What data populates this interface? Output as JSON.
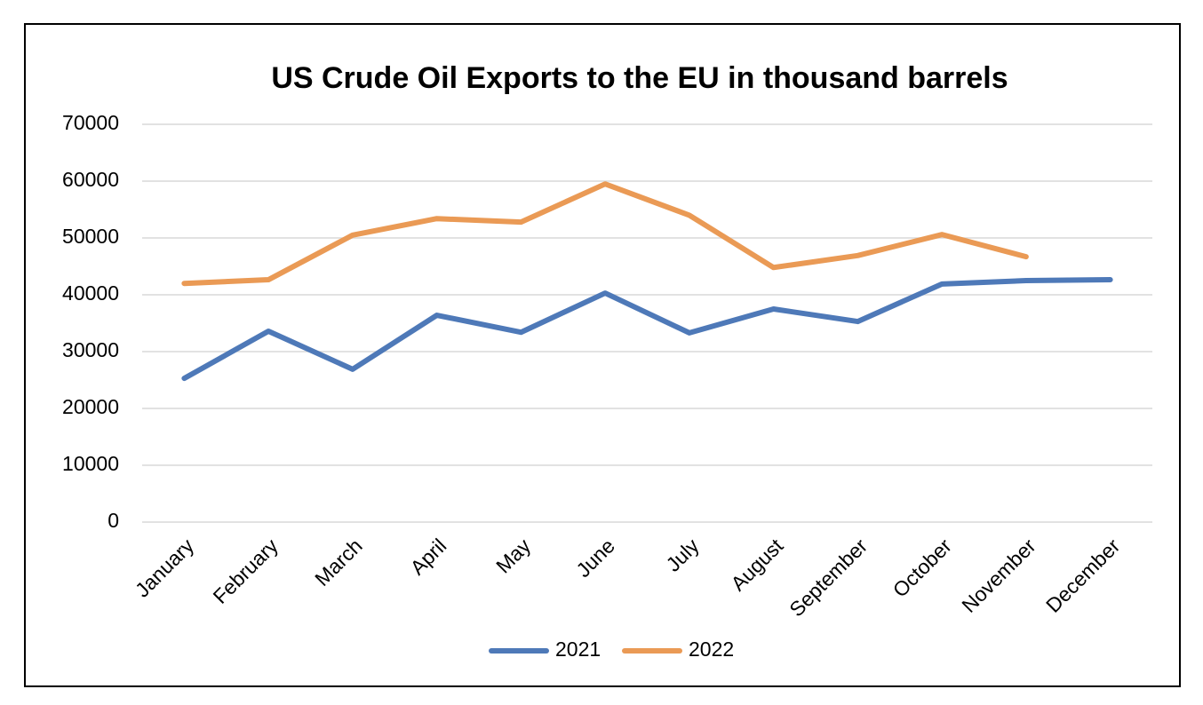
{
  "chart_data": {
    "type": "line",
    "title": "US Crude Oil Exports to the EU in thousand barrels",
    "categories": [
      "January",
      "February",
      "March",
      "April",
      "May",
      "June",
      "July",
      "August",
      "September",
      "October",
      "November",
      "December"
    ],
    "series": [
      {
        "name": "2021",
        "color": "#4e79b8",
        "values": [
          25300,
          33600,
          26900,
          36400,
          33400,
          40300,
          33300,
          37500,
          35300,
          41900,
          42500,
          42650
        ]
      },
      {
        "name": "2022",
        "color": "#ea9a55",
        "values": [
          42000,
          42650,
          50500,
          53400,
          52800,
          59500,
          54000,
          44800,
          46900,
          50600,
          46700,
          null
        ]
      }
    ],
    "ylim": [
      0,
      70000
    ],
    "yticks": [
      0,
      10000,
      20000,
      30000,
      40000,
      50000,
      60000,
      70000
    ],
    "grid": true,
    "legend": "bottom"
  }
}
